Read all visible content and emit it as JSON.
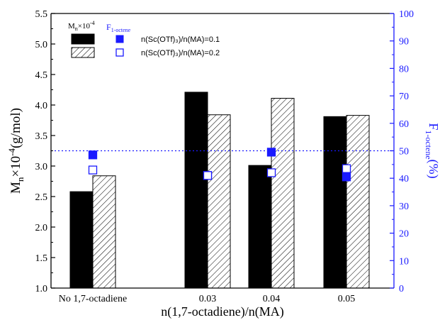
{
  "chart_data": {
    "type": "bar",
    "categories": [
      "No 1,7-octadiene",
      "0.03",
      "0.04",
      "0.05"
    ],
    "xlabel": {
      "text": "n(1,7-octadiene)/n(MA)"
    },
    "ylabel_left": {
      "main": "M",
      "sub": "n",
      "mid": "×10",
      "sup": "-4",
      "tail": "(g/mol)"
    },
    "ylabel_right": {
      "main": "F",
      "sub": "1-octene",
      "tail": "(%)"
    },
    "ylim_left": [
      1.0,
      5.5
    ],
    "ylim_right": [
      0,
      100
    ],
    "yticks_left": [
      "1.0",
      "1.5",
      "2.0",
      "2.5",
      "3.0",
      "3.5",
      "4.0",
      "4.5",
      "5.0",
      "5.5"
    ],
    "yticks_right": [
      "0",
      "10",
      "20",
      "30",
      "40",
      "50",
      "60",
      "70",
      "80",
      "90",
      "100"
    ],
    "reference_line": {
      "axis": "right",
      "value": 50,
      "style": "dotted",
      "color": "#1a1aff"
    },
    "bar_series": [
      {
        "name": "n(Sc(OTf)₃)/n(MA)=0.1",
        "fill": "solid",
        "color": "#000000",
        "values": [
          2.58,
          4.21,
          3.01,
          3.81
        ]
      },
      {
        "name": "n(Sc(OTf)₃)/n(MA)=0.2",
        "fill": "hatch",
        "color": "#000000",
        "values": [
          2.84,
          3.84,
          4.11,
          3.83
        ]
      }
    ],
    "scatter_series": [
      {
        "name": "n(Sc(OTf)₃)/n(MA)=0.1",
        "marker": "filled-square",
        "color": "#1a1aff",
        "values": [
          48.5,
          41.0,
          49.5,
          40.5
        ]
      },
      {
        "name": "n(Sc(OTf)₃)/n(MA)=0.2",
        "marker": "open-square",
        "color": "#1a1aff",
        "values": [
          43.0,
          41.0,
          42.0,
          43.5
        ]
      }
    ],
    "legend": {
      "placement": "top-left",
      "header_left": {
        "main": "M",
        "sub": "n",
        "mid": "×10",
        "sup": "-4"
      },
      "header_right": {
        "main": "F",
        "sub": "1-octene"
      },
      "entries": [
        "n(Sc(OTf)₃)/n(MA)=0.1",
        "n(Sc(OTf)₃)/n(MA)=0.2"
      ]
    },
    "colors": {
      "axis_right": "#1a1aff",
      "bars": "#000000"
    }
  }
}
